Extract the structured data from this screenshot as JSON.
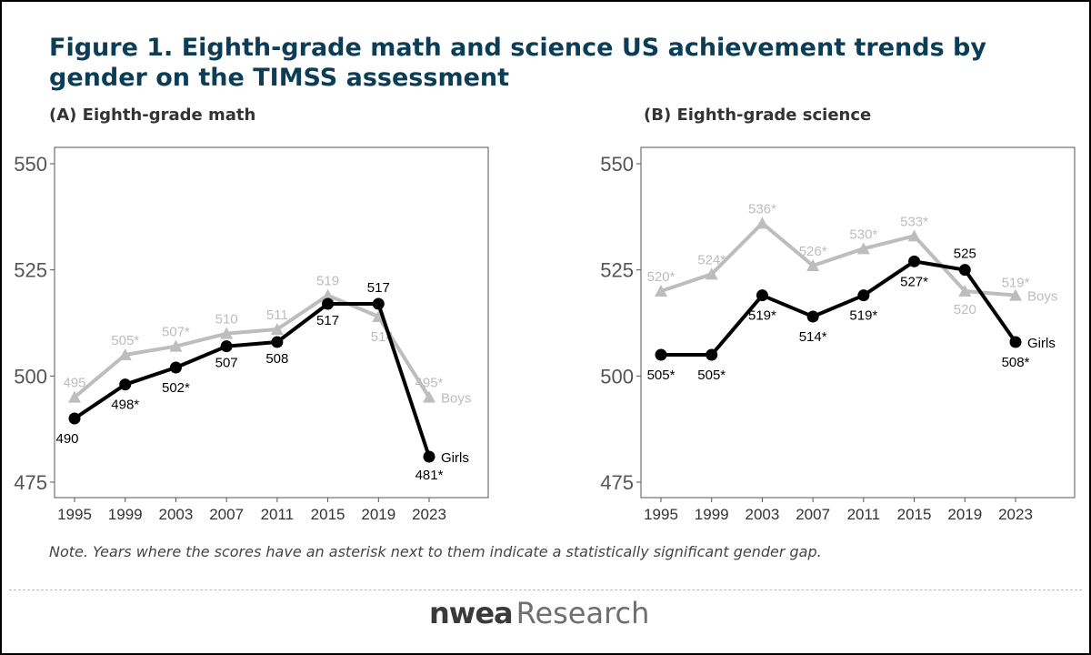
{
  "figure": {
    "title": "Figure 1. Eighth-grade math and science US achievement trends by gender on the TIMSS assessment",
    "note": "Note. Years where the scores have an asterisk next to them indicate a statistically significant gender gap.",
    "logo": {
      "mark": "nwea",
      "word": "Research"
    }
  },
  "colors": {
    "boys": "#bdbdbd",
    "girls": "#000000",
    "title": "#0b3d57"
  },
  "chart_data": [
    {
      "type": "line",
      "title": "(A) Eighth-grade math",
      "x": [
        "1995",
        "1999",
        "2003",
        "2007",
        "2011",
        "2015",
        "2019",
        "2023"
      ],
      "ylim": [
        475,
        550
      ],
      "yticks": [
        "475",
        "500",
        "525",
        "550"
      ],
      "grid": false,
      "series": [
        {
          "name": "Boys",
          "marker": "triangle",
          "values": [
            495,
            505,
            507,
            510,
            511,
            519,
            514,
            495
          ],
          "labels": [
            "495",
            "505*",
            "507*",
            "510",
            "511",
            "519",
            "514",
            "495*"
          ]
        },
        {
          "name": "Girls",
          "marker": "circle",
          "values": [
            490,
            498,
            502,
            507,
            508,
            517,
            517,
            481
          ],
          "labels": [
            "490",
            "498*",
            "502*",
            "507",
            "508",
            "517",
            "517",
            "481*"
          ]
        }
      ]
    },
    {
      "type": "line",
      "title": "(B) Eighth-grade science",
      "x": [
        "1995",
        "1999",
        "2003",
        "2007",
        "2011",
        "2015",
        "2019",
        "2023"
      ],
      "ylim": [
        475,
        550
      ],
      "yticks": [
        "475",
        "500",
        "525",
        "550"
      ],
      "grid": false,
      "series": [
        {
          "name": "Boys",
          "marker": "triangle",
          "values": [
            520,
            524,
            536,
            526,
            530,
            533,
            520,
            519
          ],
          "labels": [
            "520*",
            "524*",
            "536*",
            "526*",
            "530*",
            "533*",
            "520",
            "519*"
          ]
        },
        {
          "name": "Girls",
          "marker": "circle",
          "values": [
            505,
            505,
            519,
            514,
            519,
            527,
            525,
            508
          ],
          "labels": [
            "505*",
            "505*",
            "519*",
            "514*",
            "519*",
            "527*",
            "525",
            "508*"
          ]
        }
      ]
    }
  ]
}
